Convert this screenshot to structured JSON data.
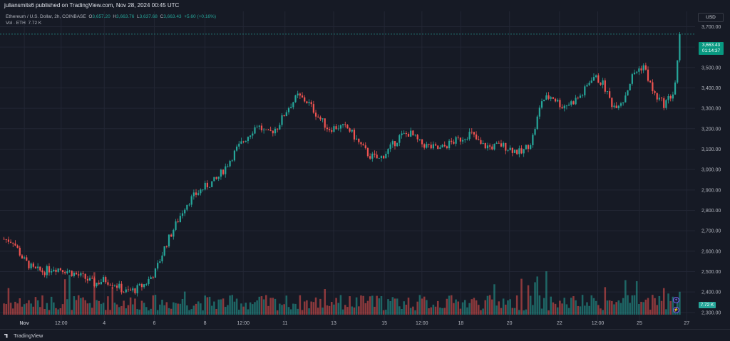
{
  "header": {
    "publisher_line": "juliansmits6 published on TradingView.com, Nov 28, 2024 00:45 UTC"
  },
  "legend": {
    "symbol": "Ethereum / U.S. Dollar, 2h, COINBASE",
    "o_label": "O",
    "o_value": "3,657.20",
    "h_label": "H",
    "h_value": "3,663.76",
    "l_label": "L",
    "l_value": "3,637.68",
    "c_label": "C",
    "c_value": "3,663.43",
    "change": "+5.60 (+0.16%)",
    "vol_label": "Vol · ETH",
    "vol_value": "7.72 K"
  },
  "toolbar": {
    "currency": "USD"
  },
  "price_tag": {
    "price": "3,663.43",
    "countdown": "01:14:37"
  },
  "volume_tag": "7.72 K",
  "footer": {
    "brand": "TradingView"
  },
  "colors": {
    "up": "#26a69a",
    "down": "#ef5350",
    "background": "#161a25",
    "grid": "#232734",
    "text": "#b2b5be"
  },
  "chart_data": {
    "type": "candlestick",
    "title": "Ethereum / U.S. Dollar, 2h, COINBASE",
    "y_axis_side": "right",
    "ylim": [
      2275,
      3740
    ],
    "y_ticks": [
      2300,
      2400,
      2500,
      2600,
      2700,
      2800,
      2900,
      3000,
      3100,
      3200,
      3300,
      3400,
      3500,
      3600,
      3700
    ],
    "y_tick_labels": [
      "2,300.00",
      "2,400.00",
      "2,500.00",
      "2,600.00",
      "2,700.00",
      "2,800.00",
      "2,900.00",
      "3,000.00",
      "3,100.00",
      "3,200.00",
      "3,300.00",
      "3,400.00",
      "3,500.00",
      "3,600.00",
      "3,700.00"
    ],
    "x_tick_labels": [
      "Nov",
      "12:00",
      "4",
      "6",
      "8",
      "12:00",
      "11",
      "13",
      "15",
      "12:00",
      "18",
      "20",
      "22",
      "12:00",
      "25",
      "27"
    ],
    "x_tick_positions": [
      0.035,
      0.088,
      0.15,
      0.222,
      0.295,
      0.35,
      0.41,
      0.48,
      0.553,
      0.607,
      0.663,
      0.733,
      0.805,
      0.86,
      0.92,
      0.988
    ],
    "last_price": 3663.43,
    "close_path": [
      [
        0.0,
        2660
      ],
      [
        0.015,
        2650
      ],
      [
        0.03,
        2560
      ],
      [
        0.045,
        2510
      ],
      [
        0.06,
        2500
      ],
      [
        0.075,
        2520
      ],
      [
        0.09,
        2510
      ],
      [
        0.105,
        2490
      ],
      [
        0.12,
        2470
      ],
      [
        0.135,
        2440
      ],
      [
        0.15,
        2460
      ],
      [
        0.165,
        2440
      ],
      [
        0.18,
        2400
      ],
      [
        0.195,
        2410
      ],
      [
        0.21,
        2440
      ],
      [
        0.225,
        2500
      ],
      [
        0.24,
        2630
      ],
      [
        0.255,
        2730
      ],
      [
        0.27,
        2830
      ],
      [
        0.285,
        2880
      ],
      [
        0.3,
        2920
      ],
      [
        0.315,
        2950
      ],
      [
        0.33,
        3020
      ],
      [
        0.345,
        3100
      ],
      [
        0.36,
        3160
      ],
      [
        0.375,
        3220
      ],
      [
        0.39,
        3170
      ],
      [
        0.405,
        3210
      ],
      [
        0.42,
        3300
      ],
      [
        0.435,
        3360
      ],
      [
        0.45,
        3330
      ],
      [
        0.465,
        3260
      ],
      [
        0.48,
        3200
      ],
      [
        0.495,
        3210
      ],
      [
        0.51,
        3200
      ],
      [
        0.525,
        3130
      ],
      [
        0.54,
        3070
      ],
      [
        0.555,
        3050
      ],
      [
        0.57,
        3100
      ],
      [
        0.585,
        3160
      ],
      [
        0.6,
        3180
      ],
      [
        0.615,
        3130
      ],
      [
        0.63,
        3110
      ],
      [
        0.645,
        3100
      ],
      [
        0.66,
        3130
      ],
      [
        0.675,
        3150
      ],
      [
        0.69,
        3180
      ],
      [
        0.705,
        3120
      ],
      [
        0.72,
        3110
      ],
      [
        0.735,
        3120
      ],
      [
        0.75,
        3100
      ],
      [
        0.765,
        3080
      ],
      [
        0.78,
        3140
      ],
      [
        0.795,
        3340
      ],
      [
        0.81,
        3360
      ],
      [
        0.825,
        3310
      ],
      [
        0.84,
        3330
      ],
      [
        0.855,
        3370
      ],
      [
        0.87,
        3460
      ],
      [
        0.885,
        3420
      ],
      [
        0.9,
        3310
      ],
      [
        0.915,
        3340
      ],
      [
        0.93,
        3470
      ],
      [
        0.945,
        3510
      ],
      [
        0.96,
        3370
      ],
      [
        0.975,
        3320
      ],
      [
        0.99,
        3380
      ],
      [
        1.0,
        3663.43
      ]
    ],
    "volume_scale_max": 10,
    "series": [
      {
        "name": "Vol · ETH",
        "last_value": "7.72 K"
      }
    ]
  }
}
